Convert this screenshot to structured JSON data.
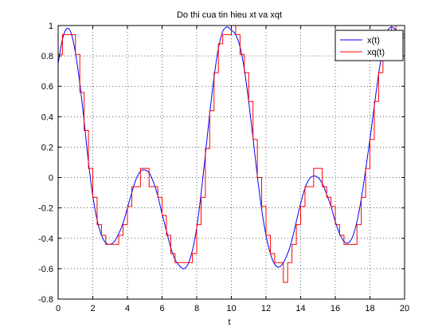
{
  "chart_data": {
    "type": "line",
    "title": "Do thi cua tin hieu xt va xqt",
    "xlabel": "t",
    "ylabel": "",
    "xlim": [
      0,
      20
    ],
    "ylim": [
      -0.8,
      1
    ],
    "xticks": [
      "0",
      "2",
      "4",
      "6",
      "8",
      "10",
      "12",
      "14",
      "16",
      "18",
      "20"
    ],
    "yticks": [
      "-0.8",
      "-0.6",
      "-0.4",
      "-0.2",
      "0",
      "0.2",
      "0.4",
      "0.6",
      "0.8",
      "1"
    ],
    "grid": true,
    "legend_position": "top-right",
    "series": [
      {
        "name": "x(t)",
        "color": "#0000ff",
        "style": "line",
        "x": [
          0,
          0.25,
          0.5,
          0.75,
          1,
          1.25,
          1.5,
          1.75,
          2,
          2.25,
          2.5,
          2.75,
          3,
          3.25,
          3.5,
          3.75,
          4,
          4.25,
          4.5,
          4.75,
          5,
          5.25,
          5.5,
          5.75,
          6,
          6.25,
          6.5,
          6.75,
          7,
          7.25,
          7.5,
          7.75,
          8,
          8.25,
          8.5,
          8.75,
          9,
          9.25,
          9.5,
          9.75,
          10,
          10.25,
          10.5,
          10.75,
          11,
          11.25,
          11.5,
          11.75,
          12,
          12.25,
          12.5,
          12.75,
          13,
          13.25,
          13.5,
          13.75,
          14,
          14.25,
          14.5,
          14.75,
          15,
          15.25,
          15.5,
          15.75,
          16,
          16.25,
          16.5,
          16.75,
          17,
          17.25,
          17.5,
          17.75,
          18,
          18.25,
          18.5,
          18.75,
          19,
          19.25,
          19.5,
          19.75,
          20
        ],
        "y": [
          0.75,
          0.91,
          0.98,
          0.95,
          0.82,
          0.62,
          0.37,
          0.1,
          -0.12,
          -0.28,
          -0.38,
          -0.43,
          -0.44,
          -0.42,
          -0.37,
          -0.3,
          -0.2,
          -0.1,
          -0.01,
          0.04,
          0.05,
          0.03,
          -0.03,
          -0.12,
          -0.24,
          -0.35,
          -0.46,
          -0.54,
          -0.58,
          -0.6,
          -0.57,
          -0.48,
          -0.33,
          -0.11,
          0.15,
          0.42,
          0.66,
          0.85,
          0.96,
          0.99,
          0.97,
          0.94,
          0.86,
          0.71,
          0.5,
          0.26,
          0.01,
          -0.21,
          -0.38,
          -0.5,
          -0.57,
          -0.59,
          -0.56,
          -0.5,
          -0.41,
          -0.29,
          -0.17,
          -0.07,
          -0.01,
          0.01,
          0.0,
          -0.04,
          -0.11,
          -0.19,
          -0.29,
          -0.37,
          -0.42,
          -0.43,
          -0.39,
          -0.29,
          -0.14,
          0.05,
          0.25,
          0.47,
          0.68,
          0.85,
          0.96,
          0.99,
          0.97,
          0.93,
          0.92
        ]
      },
      {
        "name": "xq(t)",
        "color": "#ff0000",
        "style": "step",
        "x": [
          0,
          0.25,
          0.5,
          0.75,
          1,
          1.25,
          1.5,
          1.75,
          2,
          2.25,
          2.5,
          2.75,
          3,
          3.25,
          3.5,
          3.75,
          4,
          4.25,
          4.5,
          4.75,
          5,
          5.25,
          5.5,
          5.75,
          6,
          6.25,
          6.5,
          6.75,
          7,
          7.25,
          7.5,
          7.75,
          8,
          8.25,
          8.5,
          8.75,
          9,
          9.25,
          9.5,
          9.75,
          10,
          10.25,
          10.5,
          10.75,
          11,
          11.25,
          11.5,
          11.75,
          12,
          12.25,
          12.5,
          12.75,
          13,
          13.25,
          13.5,
          13.75,
          14,
          14.25,
          14.5,
          14.75,
          15,
          15.25,
          15.5,
          15.75,
          16,
          16.25,
          16.5,
          16.75,
          17,
          17.25,
          17.5,
          17.75,
          18,
          18.25,
          18.5,
          18.75,
          19,
          19.25,
          19.5,
          19.75
        ],
        "y": [
          0.81,
          0.94,
          0.94,
          0.94,
          0.81,
          0.56,
          0.31,
          0.06,
          -0.13,
          -0.31,
          -0.38,
          -0.44,
          -0.44,
          -0.44,
          -0.38,
          -0.31,
          -0.19,
          -0.06,
          -0.06,
          0.06,
          0.06,
          -0.06,
          -0.06,
          -0.13,
          -0.25,
          -0.38,
          -0.5,
          -0.56,
          -0.56,
          -0.56,
          -0.56,
          -0.5,
          -0.31,
          -0.13,
          0.19,
          0.44,
          0.69,
          0.88,
          0.94,
          0.94,
          1.0,
          0.94,
          0.81,
          0.69,
          0.5,
          0.25,
          0.0,
          -0.19,
          -0.38,
          -0.5,
          -0.56,
          -0.56,
          -0.69,
          -0.56,
          -0.44,
          -0.31,
          -0.19,
          -0.06,
          -0.06,
          0.06,
          0.06,
          -0.06,
          -0.13,
          -0.19,
          -0.31,
          -0.38,
          -0.44,
          -0.44,
          -0.44,
          -0.31,
          -0.13,
          0.06,
          0.25,
          0.5,
          0.69,
          0.88,
          0.94,
          1.0,
          0.94,
          0.94
        ]
      }
    ]
  }
}
